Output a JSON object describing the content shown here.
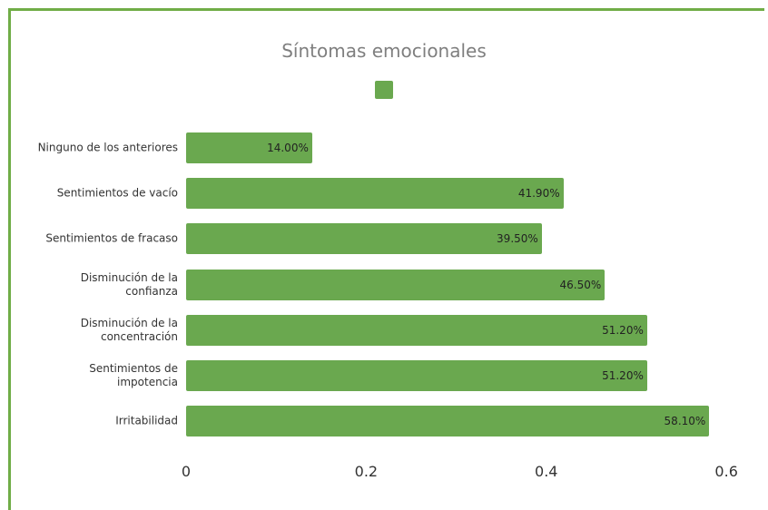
{
  "chart_data": {
    "type": "bar",
    "orientation": "horizontal",
    "title": "Síntomas emocionales",
    "categories": [
      "Ninguno de los anteriores",
      "Sentimientos de vacío",
      "Sentimientos de fracaso",
      "Disminución de la confianza",
      "Disminución de la concentración",
      "Sentimientos de impotencia",
      "Irritabilidad"
    ],
    "values": [
      0.14,
      0.419,
      0.395,
      0.465,
      0.512,
      0.512,
      0.581
    ],
    "value_labels": [
      "14.00%",
      "41.90%",
      "39.50%",
      "46.50%",
      "51.20%",
      "51.20%",
      "58.10%"
    ],
    "color": "#6aa84f",
    "frame_color": "#70ad47",
    "xlim": [
      0,
      0.62
    ],
    "xticks": [
      0,
      0.2,
      0.4,
      0.6
    ],
    "grid": false
  }
}
